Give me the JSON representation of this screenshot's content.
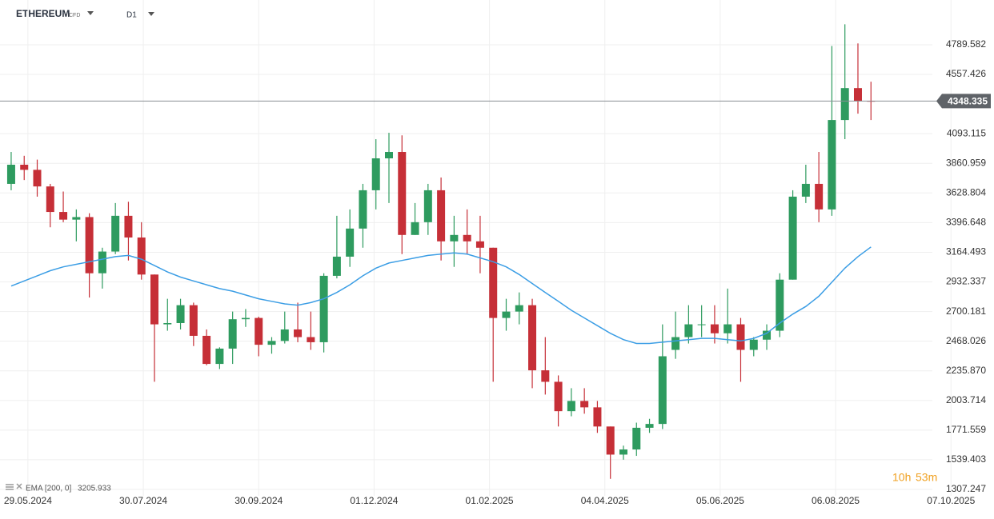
{
  "chart_data": {
    "type": "candlestick",
    "symbol": "ETHEREUM",
    "instrument": "CFD",
    "timeframe": "D1",
    "x": [
      "20.05.2024",
      "27.05.2024",
      "03.06.2024",
      "10.06.2024",
      "17.06.2024",
      "24.06.2024",
      "01.07.2024",
      "08.07.2024",
      "15.07.2024",
      "22.07.2024",
      "29.07.2024",
      "05.08.2024",
      "12.08.2024",
      "19.08.2024",
      "26.08.2024",
      "02.09.2024",
      "09.09.2024",
      "16.09.2024",
      "23.09.2024",
      "30.09.2024",
      "07.10.2024",
      "14.10.2024",
      "21.10.2024",
      "28.10.2024",
      "04.11.2024",
      "11.11.2024",
      "18.11.2024",
      "25.11.2024",
      "02.12.2024",
      "09.12.2024",
      "16.12.2024",
      "23.12.2024",
      "30.12.2024",
      "06.01.2025",
      "13.01.2025",
      "20.01.2025",
      "27.01.2025",
      "03.02.2025",
      "10.02.2025",
      "17.02.2025",
      "24.02.2025",
      "03.03.2025",
      "10.03.2025",
      "17.03.2025",
      "24.03.2025",
      "31.03.2025",
      "07.04.2025",
      "14.04.2025",
      "21.04.2025",
      "28.04.2025",
      "05.05.2025",
      "12.05.2025",
      "19.05.2025",
      "26.05.2025",
      "02.06.2025",
      "09.06.2025",
      "16.06.2025",
      "23.06.2025",
      "30.06.2025",
      "07.07.2025",
      "14.07.2025",
      "21.07.2025",
      "28.07.2025",
      "04.08.2025",
      "11.08.2025",
      "18.08.2025",
      "25.08.2025"
    ],
    "open": [
      3700,
      3850,
      3810,
      3680,
      3480,
      3420,
      3440,
      3000,
      3170,
      3450,
      3280,
      2990,
      2600,
      2610,
      2750,
      2510,
      2290,
      2410,
      2640,
      2650,
      2440,
      2470,
      2560,
      2500,
      2460,
      2980,
      3130,
      3350,
      3650,
      3900,
      3950,
      3300,
      3400,
      3650,
      3250,
      3300,
      3250,
      3200,
      2650,
      2700,
      2750,
      2240,
      2150,
      1920,
      2000,
      1950,
      1800,
      1580,
      1620,
      1790,
      1820,
      2400,
      2500,
      2600,
      2600,
      2530,
      2600,
      2400,
      2480,
      2550,
      2950,
      3600,
      3700,
      3500,
      4200,
      4450,
      4350
    ],
    "high": [
      3950,
      3920,
      3890,
      3700,
      3640,
      3500,
      3470,
      3200,
      3550,
      3560,
      3400,
      2990,
      2800,
      2800,
      2770,
      2560,
      2420,
      2700,
      2720,
      2660,
      2500,
      2700,
      2770,
      2700,
      3000,
      3450,
      3500,
      3700,
      4050,
      4100,
      4080,
      3550,
      3700,
      3750,
      3450,
      3500,
      3450,
      3200,
      2800,
      2850,
      2800,
      2500,
      2200,
      2100,
      2100,
      2000,
      1800,
      1650,
      1830,
      1860,
      2600,
      2700,
      2750,
      2750,
      2750,
      2880,
      2650,
      2500,
      2600,
      3000,
      3650,
      3850,
      3950,
      4780,
      4950,
      4800,
      4500
    ],
    "low": [
      3650,
      3730,
      3600,
      3360,
      3400,
      3250,
      2810,
      2880,
      3150,
      3100,
      2950,
      2150,
      2550,
      2560,
      2430,
      2280,
      2250,
      2290,
      2580,
      2350,
      2370,
      2450,
      2460,
      2400,
      2380,
      2960,
      3050,
      3200,
      3500,
      3550,
      3150,
      3300,
      3300,
      3100,
      3050,
      3150,
      3000,
      2150,
      2550,
      2600,
      2100,
      2050,
      1800,
      1880,
      1900,
      1750,
      1390,
      1540,
      1570,
      1750,
      1780,
      2330,
      2450,
      2500,
      2450,
      2450,
      2150,
      2350,
      2400,
      2500,
      2950,
      3550,
      3400,
      3450,
      4050,
      4250,
      4200
    ],
    "close": [
      3850,
      3810,
      3680,
      3480,
      3420,
      3440,
      3000,
      3170,
      3450,
      3280,
      2990,
      2600,
      2610,
      2750,
      2510,
      2290,
      2410,
      2640,
      2650,
      2440,
      2470,
      2560,
      2500,
      2460,
      2980,
      3130,
      3350,
      3650,
      3900,
      3950,
      3300,
      3400,
      3650,
      3250,
      3300,
      3250,
      3200,
      2650,
      2700,
      2750,
      2240,
      2150,
      1920,
      2000,
      1950,
      1800,
      1580,
      1620,
      1790,
      1820,
      2350,
      2500,
      2600,
      2600,
      2530,
      2600,
      2400,
      2480,
      2550,
      2950,
      3600,
      3700,
      3500,
      4200,
      4450,
      4350,
      4348.335
    ],
    "up_color": "#2e9b5f",
    "down_color": "#c62f37",
    "overlay": {
      "name": "EMA [200, 0]",
      "color": "#3c9ee5",
      "values": [
        2900,
        2940,
        2980,
        3020,
        3050,
        3070,
        3090,
        3110,
        3130,
        3140,
        3110,
        3060,
        3010,
        2970,
        2940,
        2910,
        2880,
        2860,
        2830,
        2800,
        2780,
        2760,
        2750,
        2770,
        2800,
        2850,
        2910,
        2980,
        3040,
        3080,
        3100,
        3120,
        3140,
        3150,
        3160,
        3150,
        3120,
        3090,
        3050,
        2990,
        2920,
        2850,
        2780,
        2710,
        2650,
        2590,
        2530,
        2480,
        2450,
        2450,
        2460,
        2470,
        2480,
        2490,
        2490,
        2480,
        2470,
        2490,
        2530,
        2610,
        2680,
        2740,
        2820,
        2930,
        3040,
        3130,
        3205.933
      ]
    },
    "last_price": 4348.335,
    "countdown": [
      "10h",
      "53m"
    ],
    "xlim": [
      "14.05.2024",
      "27.09.2025"
    ],
    "xticks": [
      "29.05.2024",
      "30.07.2024",
      "30.09.2024",
      "01.12.2024",
      "01.02.2025",
      "04.04.2025",
      "05.06.2025",
      "06.08.2025",
      "07.10.2025"
    ],
    "ylim": [
      1257.15,
      5140
    ],
    "yticks": [
      1307.247,
      1539.403,
      1771.559,
      2003.714,
      {
        "value": 2235.87,
        "label": "2235.870"
      },
      2468.026,
      2700.181,
      2932.337,
      3164.493,
      3396.648,
      3628.804,
      3860.959,
      4093.115,
      4557.426,
      4789.582
    ],
    "grid": true
  }
}
